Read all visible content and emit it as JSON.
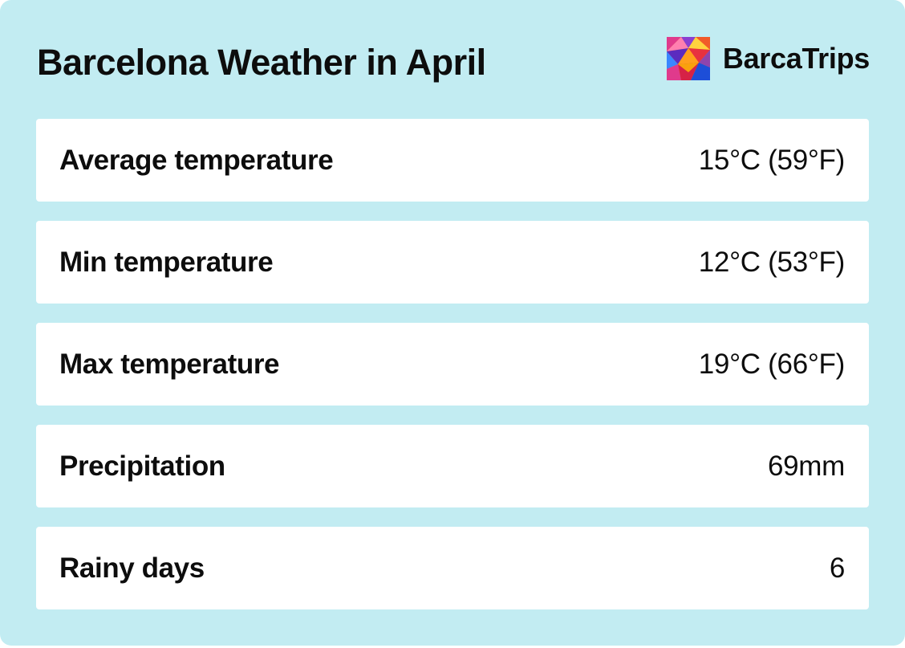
{
  "header": {
    "title": "Barcelona Weather in April"
  },
  "brand": {
    "name": "BarcaTrips",
    "logo_icon": "mosaic-logo-icon"
  },
  "rows": [
    {
      "label": "Average temperature",
      "value": "15°C (59°F)"
    },
    {
      "label": "Min temperature",
      "value": "12°C (53°F)"
    },
    {
      "label": "Max temperature",
      "value": "19°C (66°F)"
    },
    {
      "label": "Precipitation",
      "value": "69mm"
    },
    {
      "label": "Rainy days",
      "value": "6"
    }
  ],
  "colors": {
    "background": "#c2ecf2",
    "row_background": "#ffffff",
    "text": "#0d0d0d"
  }
}
